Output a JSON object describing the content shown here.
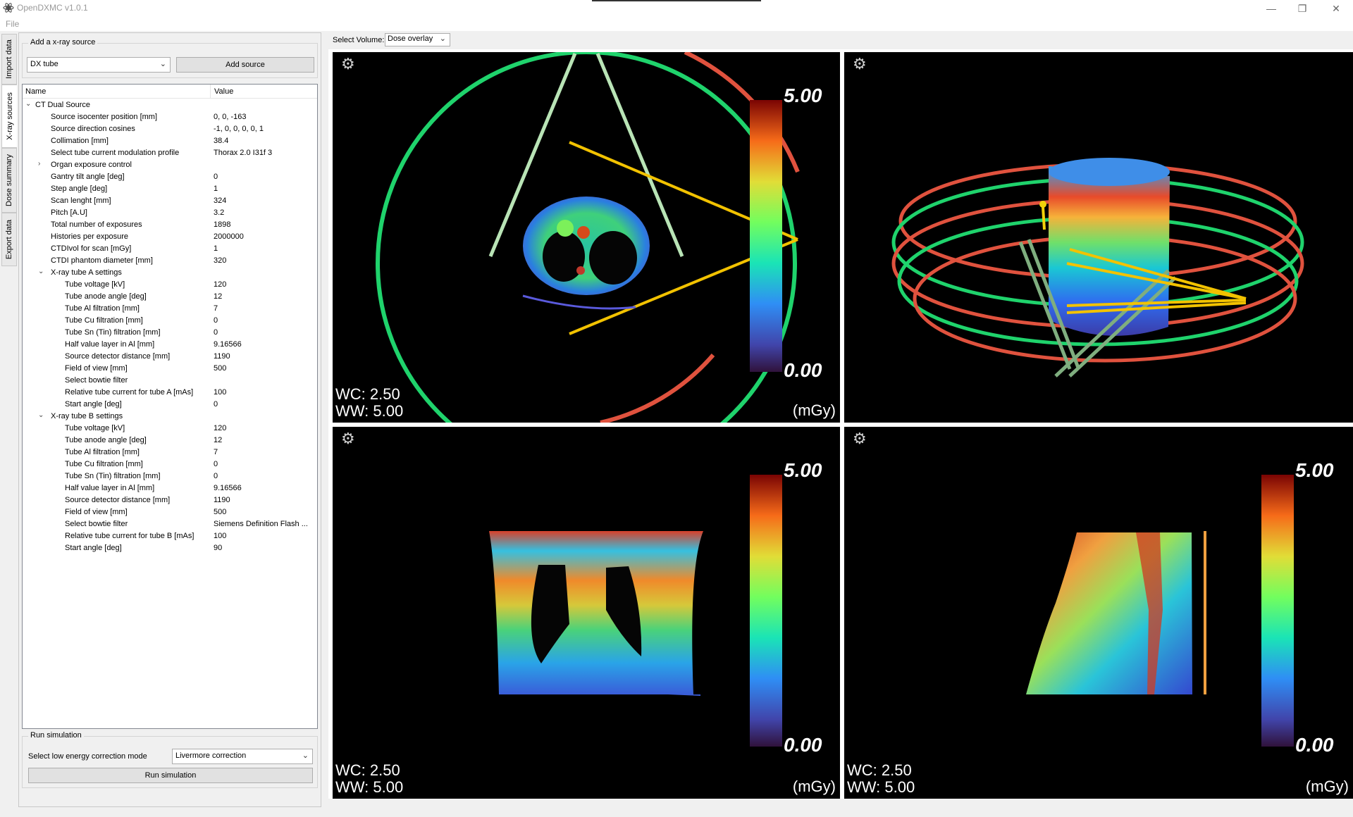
{
  "window": {
    "title": "OpenDXMC v1.0.1"
  },
  "menu": {
    "file": "File"
  },
  "vertical_tabs": [
    "Import data",
    "X-ray sources",
    "Dose summary",
    "Export data"
  ],
  "source_group": {
    "title": "Add a x-ray source",
    "source_type": "DX tube",
    "add_button": "Add source"
  },
  "tree": {
    "columns": {
      "name": "Name",
      "value": "Value"
    },
    "rows": [
      {
        "name": "CT Dual Source",
        "value": "",
        "level": 0,
        "arrow": "expanded"
      },
      {
        "name": "Source isocenter position [mm]",
        "value": "0, 0, -163",
        "level": 1,
        "arrow": ""
      },
      {
        "name": "Source direction cosines",
        "value": "-1, 0, 0, 0, 0, 1",
        "level": 1,
        "arrow": ""
      },
      {
        "name": "Collimation [mm]",
        "value": "38.4",
        "level": 1,
        "arrow": ""
      },
      {
        "name": "Select tube current modulation profile",
        "value": "Thorax  2.0  I31f  3",
        "level": 1,
        "arrow": ""
      },
      {
        "name": "Organ exposure control",
        "value": "",
        "level": 1,
        "arrow": "collapsed"
      },
      {
        "name": "Gantry tilt angle [deg]",
        "value": "0",
        "level": 1,
        "arrow": ""
      },
      {
        "name": "Step angle [deg]",
        "value": "1",
        "level": 1,
        "arrow": ""
      },
      {
        "name": "Scan lenght [mm]",
        "value": "324",
        "level": 1,
        "arrow": ""
      },
      {
        "name": "Pitch [A.U]",
        "value": "3.2",
        "level": 1,
        "arrow": ""
      },
      {
        "name": "Total number of exposures",
        "value": "1898",
        "level": 1,
        "arrow": ""
      },
      {
        "name": "Histories per exposure",
        "value": "2000000",
        "level": 1,
        "arrow": ""
      },
      {
        "name": "CTDIvol for scan [mGy]",
        "value": "1",
        "level": 1,
        "arrow": ""
      },
      {
        "name": "CTDI phantom diameter [mm]",
        "value": "320",
        "level": 1,
        "arrow": ""
      },
      {
        "name": "X-ray tube A settings",
        "value": "",
        "level": 1,
        "arrow": "expanded"
      },
      {
        "name": "Tube voltage [kV]",
        "value": "120",
        "level": 2,
        "arrow": ""
      },
      {
        "name": "Tube anode angle [deg]",
        "value": "12",
        "level": 2,
        "arrow": ""
      },
      {
        "name": "Tube Al filtration [mm]",
        "value": "7",
        "level": 2,
        "arrow": ""
      },
      {
        "name": "Tube Cu filtration [mm]",
        "value": "0",
        "level": 2,
        "arrow": ""
      },
      {
        "name": "Tube Sn (Tin) filtration [mm]",
        "value": "0",
        "level": 2,
        "arrow": ""
      },
      {
        "name": "Half value layer in Al [mm]",
        "value": "9.16566",
        "level": 2,
        "arrow": ""
      },
      {
        "name": "Source detector distance [mm]",
        "value": "1190",
        "level": 2,
        "arrow": ""
      },
      {
        "name": "Field of view [mm]",
        "value": "500",
        "level": 2,
        "arrow": ""
      },
      {
        "name": "Select bowtie filter",
        "value": "",
        "level": 2,
        "arrow": ""
      },
      {
        "name": "Relative tube current for tube A [mAs]",
        "value": "100",
        "level": 2,
        "arrow": ""
      },
      {
        "name": "Start angle [deg]",
        "value": "0",
        "level": 2,
        "arrow": ""
      },
      {
        "name": "X-ray tube B settings",
        "value": "",
        "level": 1,
        "arrow": "expanded"
      },
      {
        "name": "Tube voltage [kV]",
        "value": "120",
        "level": 2,
        "arrow": ""
      },
      {
        "name": "Tube anode angle [deg]",
        "value": "12",
        "level": 2,
        "arrow": ""
      },
      {
        "name": "Tube Al filtration [mm]",
        "value": "7",
        "level": 2,
        "arrow": ""
      },
      {
        "name": "Tube Cu filtration [mm]",
        "value": "0",
        "level": 2,
        "arrow": ""
      },
      {
        "name": "Tube Sn (Tin) filtration [mm]",
        "value": "0",
        "level": 2,
        "arrow": ""
      },
      {
        "name": "Half value layer in Al [mm]",
        "value": "9.16566",
        "level": 2,
        "arrow": ""
      },
      {
        "name": "Source detector distance [mm]",
        "value": "1190",
        "level": 2,
        "arrow": ""
      },
      {
        "name": "Field of view [mm]",
        "value": "500",
        "level": 2,
        "arrow": ""
      },
      {
        "name": "Select bowtie filter",
        "value": "Siemens Definition Flash ...",
        "level": 2,
        "arrow": ""
      },
      {
        "name": "Relative tube current for tube B [mAs]",
        "value": "100",
        "level": 2,
        "arrow": ""
      },
      {
        "name": "Start angle [deg]",
        "value": "90",
        "level": 2,
        "arrow": ""
      }
    ]
  },
  "run_group": {
    "title": "Run simulation",
    "correction_label": "Select low energy correction mode",
    "correction_value": "Livermore correction",
    "run_button": "Run simulation"
  },
  "volume_select": {
    "label": "Select Volume:",
    "value": "Dose overlay"
  },
  "viewports": [
    {
      "view": "axial",
      "wc": "WC: 2.50",
      "ww": "WW: 5.00",
      "unit": "(mGy)",
      "cb_max": "5.00",
      "cb_min": "0.00"
    },
    {
      "view": "3d",
      "wc": "",
      "ww": "",
      "unit": "",
      "cb_max": "",
      "cb_min": ""
    },
    {
      "view": "coronal",
      "wc": "WC: 2.50",
      "ww": "WW: 5.00",
      "unit": "(mGy)",
      "cb_max": "5.00",
      "cb_min": "0.00"
    },
    {
      "view": "sagittal",
      "wc": "WC: 2.50",
      "ww": "WW: 5.00",
      "unit": "(mGy)",
      "cb_max": "5.00",
      "cb_min": "0.00"
    }
  ],
  "colors": {
    "green_ring": "#1fd36c",
    "red_ring": "#e0523e",
    "yellow_beam": "#f2c200",
    "pale_beam": "#b9e4b6"
  },
  "icons": {
    "app": "atom-icon",
    "settings": "gear-icon"
  }
}
